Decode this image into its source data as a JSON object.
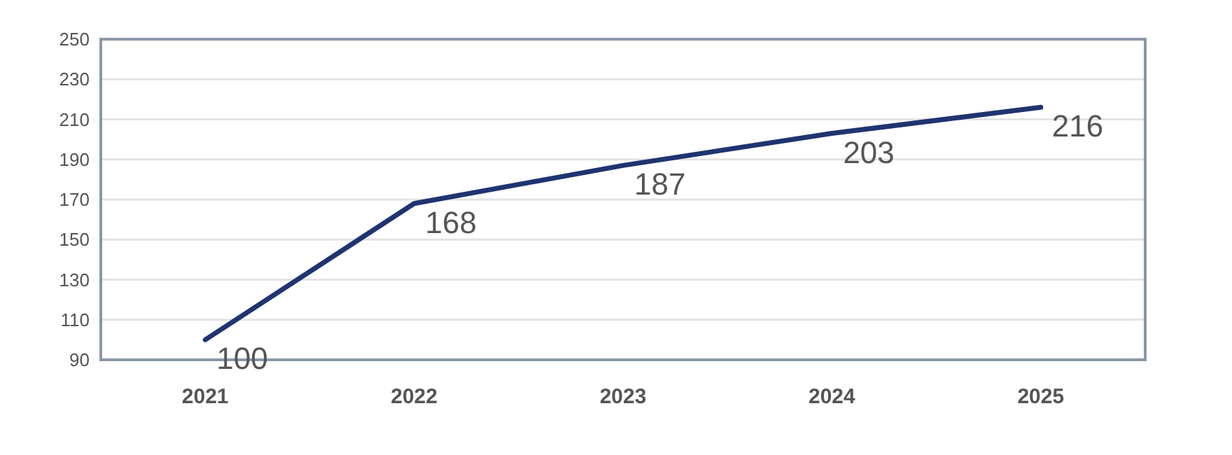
{
  "chart_data": {
    "type": "line",
    "categories": [
      "2021",
      "2022",
      "2023",
      "2024",
      "2025"
    ],
    "series": [
      {
        "color": "#1f3470",
        "values": [
          100,
          168,
          187,
          203,
          216
        ]
      }
    ],
    "data_labels": true,
    "ylim": [
      90,
      250
    ],
    "yticks": [
      90,
      110,
      130,
      150,
      170,
      190,
      210,
      230,
      250
    ],
    "grid": "y",
    "marker": "none",
    "line_style": "solid"
  }
}
